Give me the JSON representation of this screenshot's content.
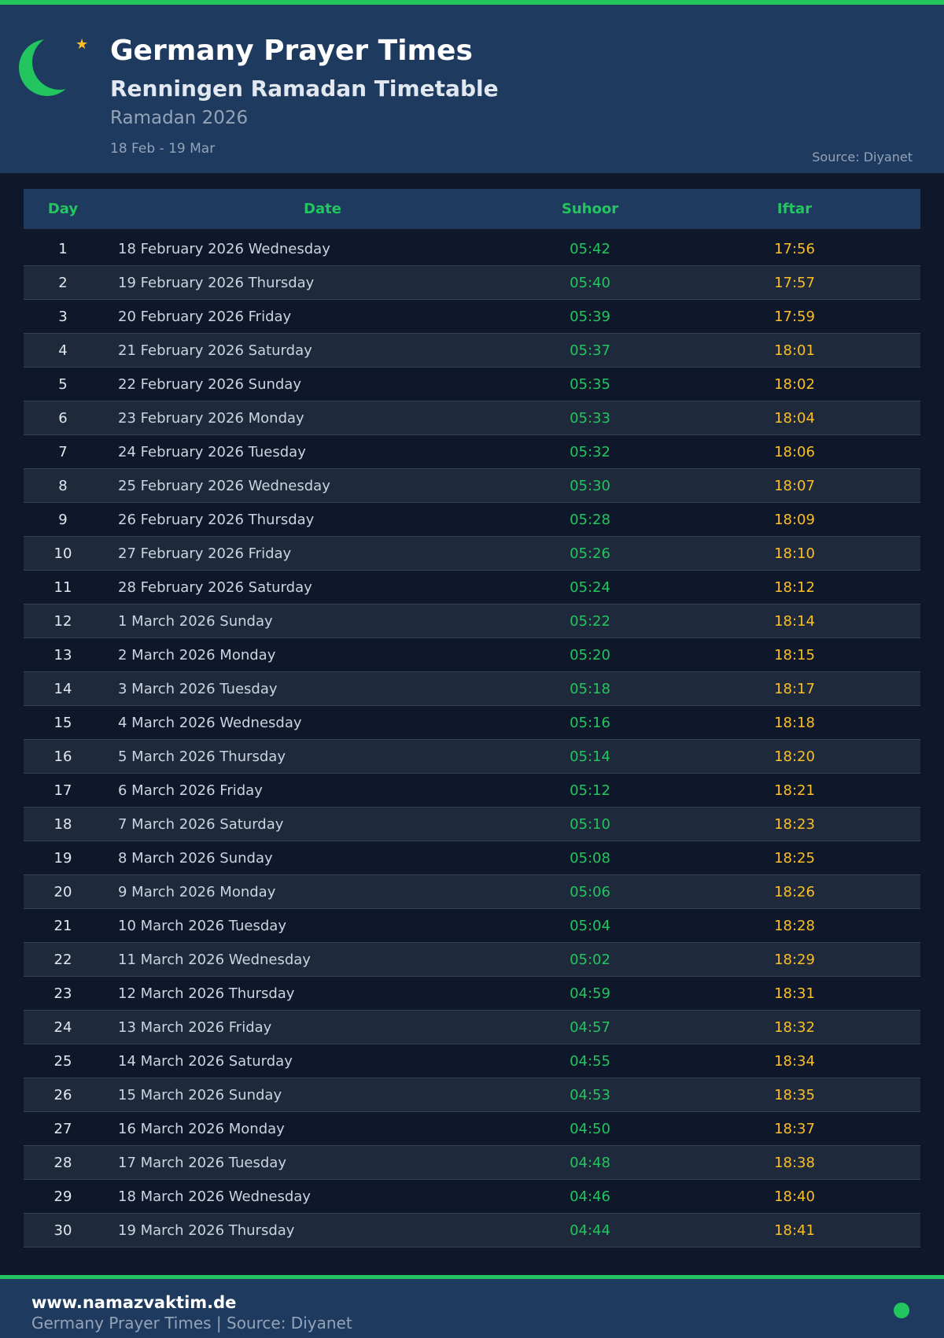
{
  "header": {
    "title": "Germany Prayer Times",
    "subtitle": "Renningen Ramadan Timetable",
    "season": "Ramadan 2026",
    "range": "18 Feb - 19 Mar",
    "source": "Source: Diyanet",
    "logo": "crescent-star-icon"
  },
  "colors": {
    "accent": "#22c55e",
    "iftar": "#fbbf24",
    "background": "#0f172a",
    "panel": "#1e3a5f"
  },
  "table": {
    "columns": [
      "Day",
      "Date",
      "Suhoor",
      "Iftar"
    ],
    "rows": [
      [
        "1",
        "18 February 2026 Wednesday",
        "05:42",
        "17:56"
      ],
      [
        "2",
        "19 February 2026 Thursday",
        "05:40",
        "17:57"
      ],
      [
        "3",
        "20 February 2026 Friday",
        "05:39",
        "17:59"
      ],
      [
        "4",
        "21 February 2026 Saturday",
        "05:37",
        "18:01"
      ],
      [
        "5",
        "22 February 2026 Sunday",
        "05:35",
        "18:02"
      ],
      [
        "6",
        "23 February 2026 Monday",
        "05:33",
        "18:04"
      ],
      [
        "7",
        "24 February 2026 Tuesday",
        "05:32",
        "18:06"
      ],
      [
        "8",
        "25 February 2026 Wednesday",
        "05:30",
        "18:07"
      ],
      [
        "9",
        "26 February 2026 Thursday",
        "05:28",
        "18:09"
      ],
      [
        "10",
        "27 February 2026 Friday",
        "05:26",
        "18:10"
      ],
      [
        "11",
        "28 February 2026 Saturday",
        "05:24",
        "18:12"
      ],
      [
        "12",
        "1 March 2026 Sunday",
        "05:22",
        "18:14"
      ],
      [
        "13",
        "2 March 2026 Monday",
        "05:20",
        "18:15"
      ],
      [
        "14",
        "3 March 2026 Tuesday",
        "05:18",
        "18:17"
      ],
      [
        "15",
        "4 March 2026 Wednesday",
        "05:16",
        "18:18"
      ],
      [
        "16",
        "5 March 2026 Thursday",
        "05:14",
        "18:20"
      ],
      [
        "17",
        "6 March 2026 Friday",
        "05:12",
        "18:21"
      ],
      [
        "18",
        "7 March 2026 Saturday",
        "05:10",
        "18:23"
      ],
      [
        "19",
        "8 March 2026 Sunday",
        "05:08",
        "18:25"
      ],
      [
        "20",
        "9 March 2026 Monday",
        "05:06",
        "18:26"
      ],
      [
        "21",
        "10 March 2026 Tuesday",
        "05:04",
        "18:28"
      ],
      [
        "22",
        "11 March 2026 Wednesday",
        "05:02",
        "18:29"
      ],
      [
        "23",
        "12 March 2026 Thursday",
        "04:59",
        "18:31"
      ],
      [
        "24",
        "13 March 2026 Friday",
        "04:57",
        "18:32"
      ],
      [
        "25",
        "14 March 2026 Saturday",
        "04:55",
        "18:34"
      ],
      [
        "26",
        "15 March 2026 Sunday",
        "04:53",
        "18:35"
      ],
      [
        "27",
        "16 March 2026 Monday",
        "04:50",
        "18:37"
      ],
      [
        "28",
        "17 March 2026 Tuesday",
        "04:48",
        "18:38"
      ],
      [
        "29",
        "18 March 2026 Wednesday",
        "04:46",
        "18:40"
      ],
      [
        "30",
        "19 March 2026 Thursday",
        "04:44",
        "18:41"
      ]
    ]
  },
  "footer": {
    "url": "www.namazvaktim.de",
    "text": "Germany Prayer Times | Source: Diyanet",
    "indicator": "status-dot-icon"
  }
}
